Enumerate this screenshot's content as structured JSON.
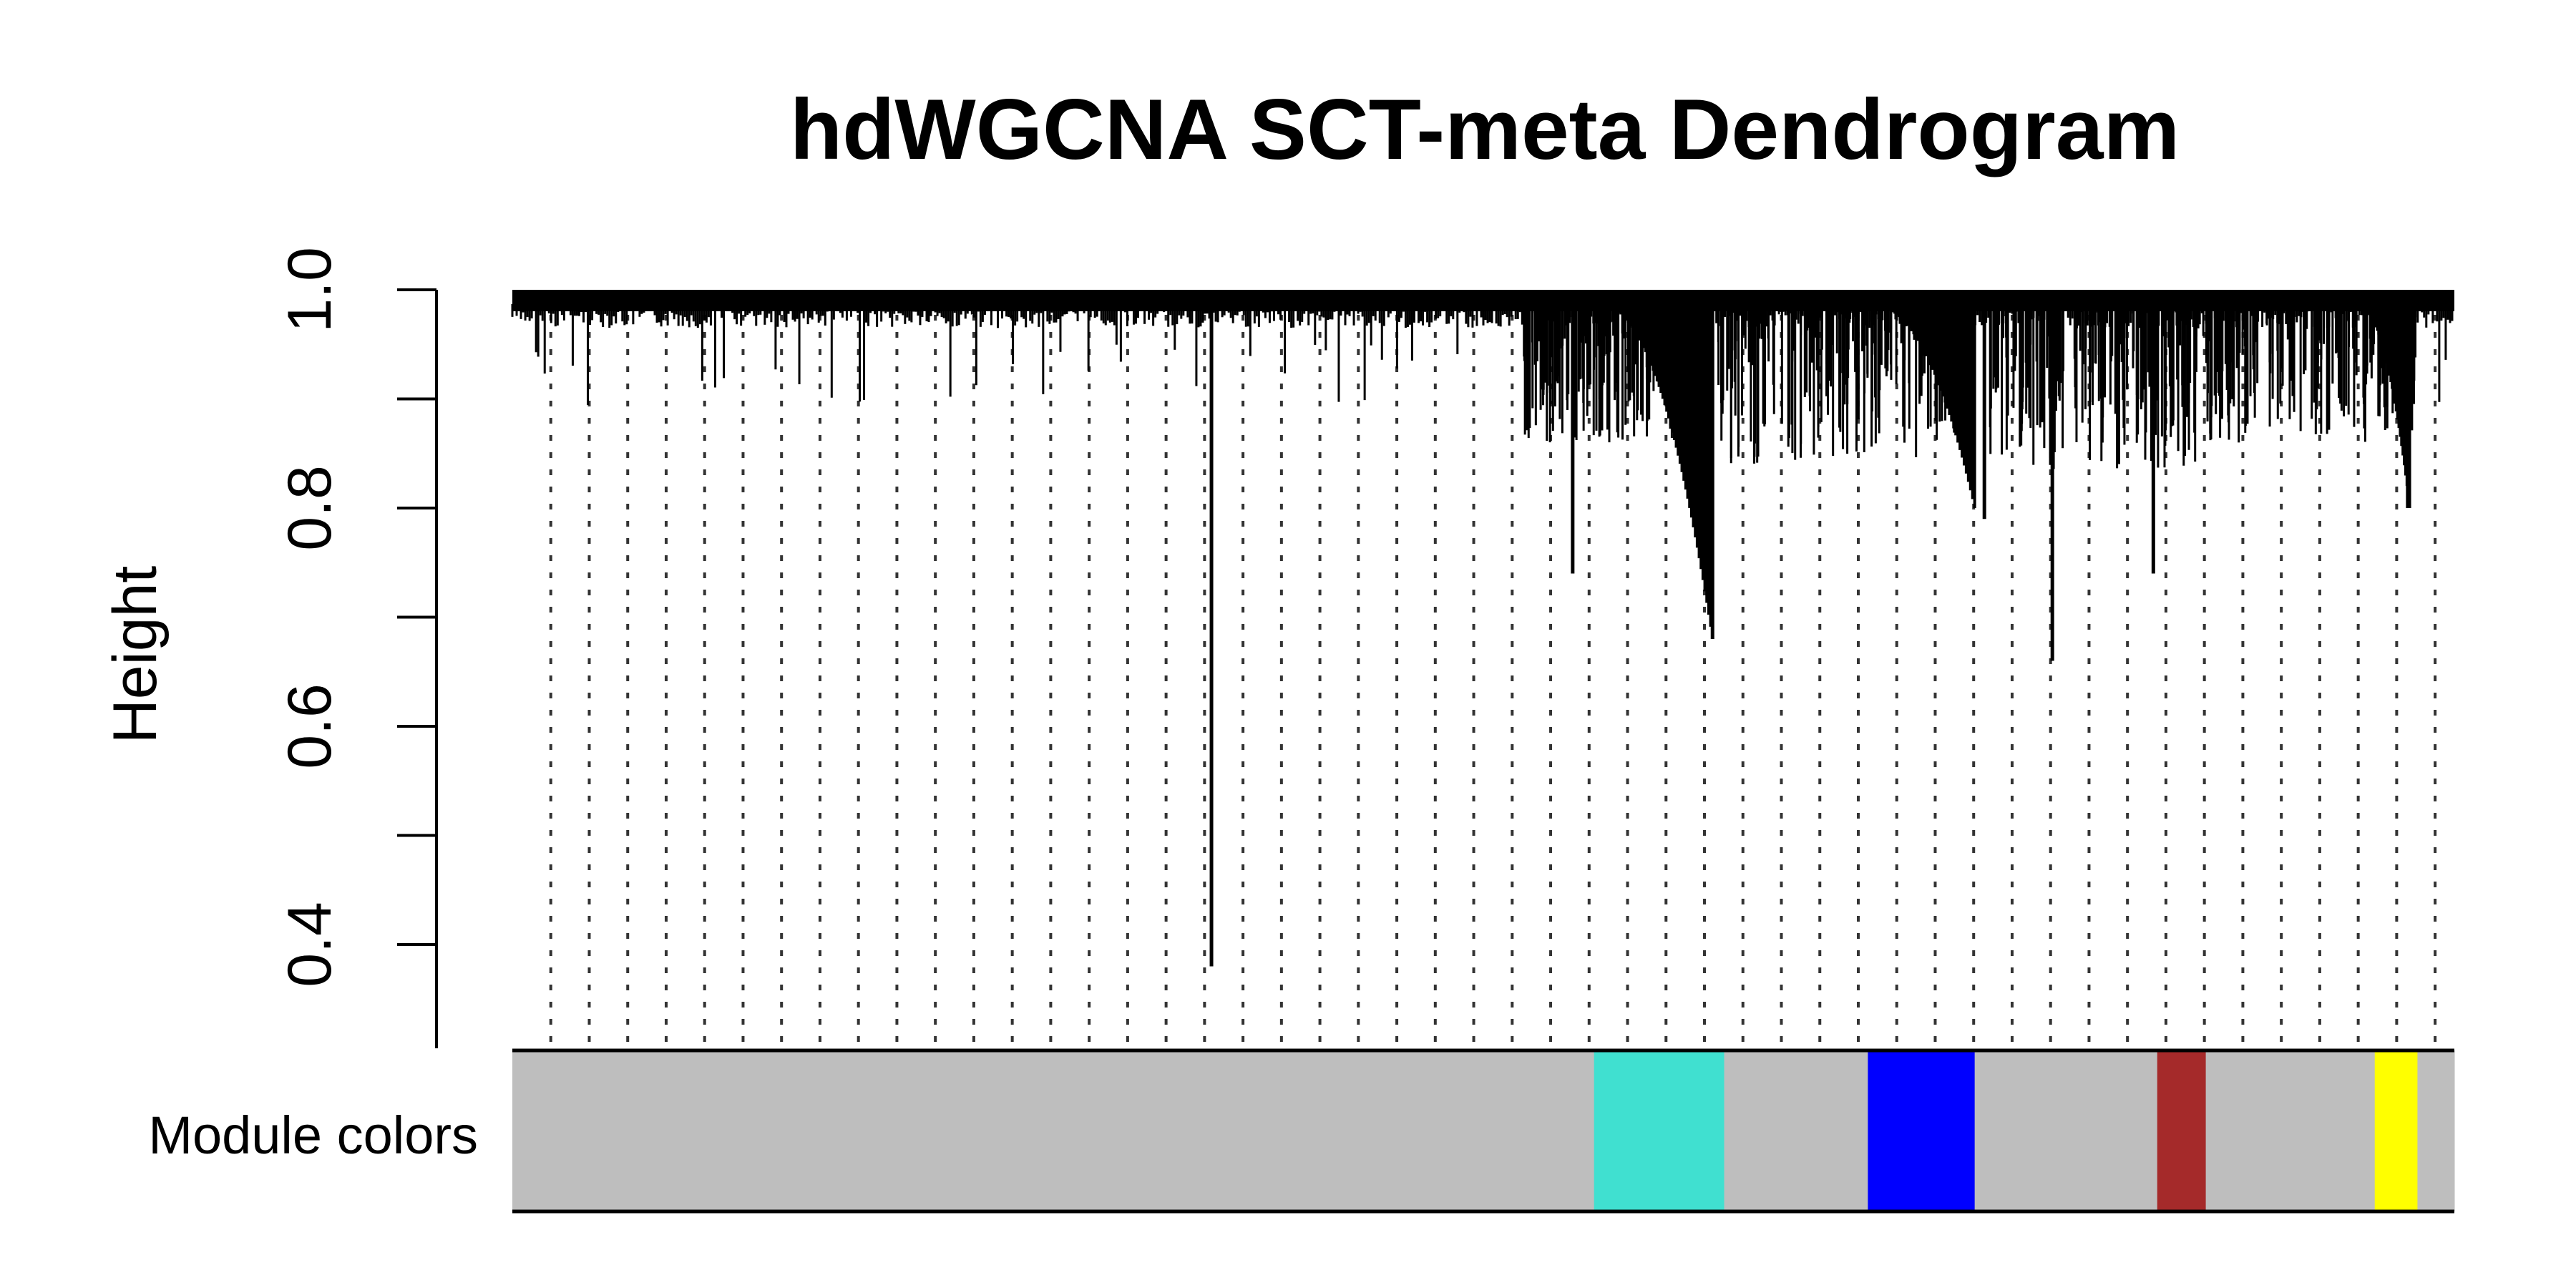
{
  "chart_data": {
    "type": "dendrogram",
    "title": "hdWGCNA SCT-meta Dendrogram",
    "ylabel": "Height",
    "xlabel": "",
    "ylim": [
      0.3,
      1.0
    ],
    "yticks": [
      0.4,
      0.6,
      0.8,
      1.0
    ],
    "ytick_labels": [
      "0.4",
      "0.6",
      "0.8",
      "1.0"
    ],
    "guide_lines": "dotted",
    "color_row_label": "Module colors",
    "modules": [
      {
        "color": "#bebebe",
        "from": 0.0,
        "to": 0.557
      },
      {
        "color": "#40e0d0",
        "from": 0.557,
        "to": 0.624
      },
      {
        "color": "#bebebe",
        "from": 0.624,
        "to": 0.698
      },
      {
        "color": "#0000ff",
        "from": 0.698,
        "to": 0.753
      },
      {
        "color": "#bebebe",
        "from": 0.753,
        "to": 0.847
      },
      {
        "color": "#a52a2a",
        "from": 0.847,
        "to": 0.872
      },
      {
        "color": "#bebebe",
        "from": 0.872,
        "to": 0.959
      },
      {
        "color": "#ffff00",
        "from": 0.959,
        "to": 0.981
      },
      {
        "color": "#bebebe",
        "from": 0.981,
        "to": 1.0
      }
    ],
    "notable_branches": [
      {
        "x": 0.36,
        "height": 0.38
      },
      {
        "x": 0.618,
        "height": 0.68
      },
      {
        "x": 0.793,
        "height": 0.66
      },
      {
        "x": 0.845,
        "height": 0.74
      },
      {
        "x": 0.546,
        "height": 0.74
      },
      {
        "x": 0.976,
        "height": 0.8
      },
      {
        "x": 0.758,
        "height": 0.79
      }
    ]
  }
}
